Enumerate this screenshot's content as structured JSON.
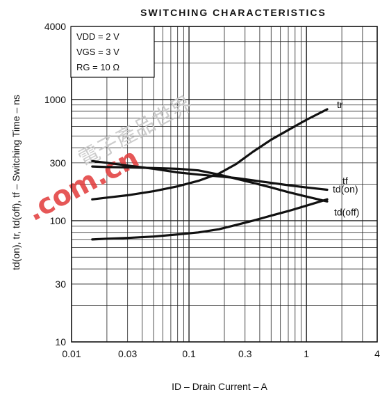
{
  "chart_data": {
    "type": "line",
    "title": "SWITCHING CHARACTERISTICS",
    "xlabel": "ID – Drain Current – A",
    "ylabel": "td(on), tr, td(off), tf – Switching Time – ns",
    "x_scale": "log",
    "y_scale": "log",
    "xlim": [
      0.01,
      4
    ],
    "ylim": [
      10,
      4000
    ],
    "x_ticks": [
      "0.01",
      "0.03",
      "0.1",
      "0.3",
      "1",
      "4"
    ],
    "y_ticks": [
      "10",
      "30",
      "100",
      "300",
      "1000",
      "4000"
    ],
    "conditions": [
      "VDD = 2 V",
      "VGS = 3 V",
      "RG = 10 Ω"
    ],
    "grid": true,
    "series": [
      {
        "name": "tr",
        "x": [
          0.015,
          0.02,
          0.03,
          0.05,
          0.08,
          0.12,
          0.18,
          0.25,
          0.35,
          0.5,
          0.7,
          1.0,
          1.5
        ],
        "values": [
          150,
          155,
          162,
          175,
          192,
          213,
          245,
          292,
          370,
          465,
          560,
          680,
          830
        ]
      },
      {
        "name": "tf",
        "x": [
          0.015,
          0.02,
          0.03,
          0.05,
          0.08,
          0.12,
          0.18,
          0.25,
          0.35,
          0.5,
          0.7,
          1.0,
          1.5
        ],
        "values": [
          310,
          300,
          285,
          268,
          250,
          240,
          232,
          225,
          215,
          205,
          196,
          188,
          180
        ]
      },
      {
        "name": "td(on)",
        "x": [
          0.015,
          0.02,
          0.03,
          0.05,
          0.08,
          0.12,
          0.18,
          0.25,
          0.35,
          0.5,
          0.7,
          1.0,
          1.5
        ],
        "values": [
          70,
          71,
          72,
          74,
          77,
          80,
          85,
          92,
          100,
          110,
          120,
          133,
          150
        ]
      },
      {
        "name": "td(off)",
        "x": [
          0.015,
          0.02,
          0.03,
          0.05,
          0.08,
          0.12,
          0.18,
          0.25,
          0.35,
          0.5,
          0.7,
          1.0,
          1.5
        ],
        "values": [
          280,
          277,
          275,
          272,
          268,
          260,
          240,
          222,
          205,
          188,
          172,
          158,
          144
        ]
      }
    ],
    "watermark": {
      "text": ".com.cn",
      "glyphs": "電子產品世界"
    }
  }
}
